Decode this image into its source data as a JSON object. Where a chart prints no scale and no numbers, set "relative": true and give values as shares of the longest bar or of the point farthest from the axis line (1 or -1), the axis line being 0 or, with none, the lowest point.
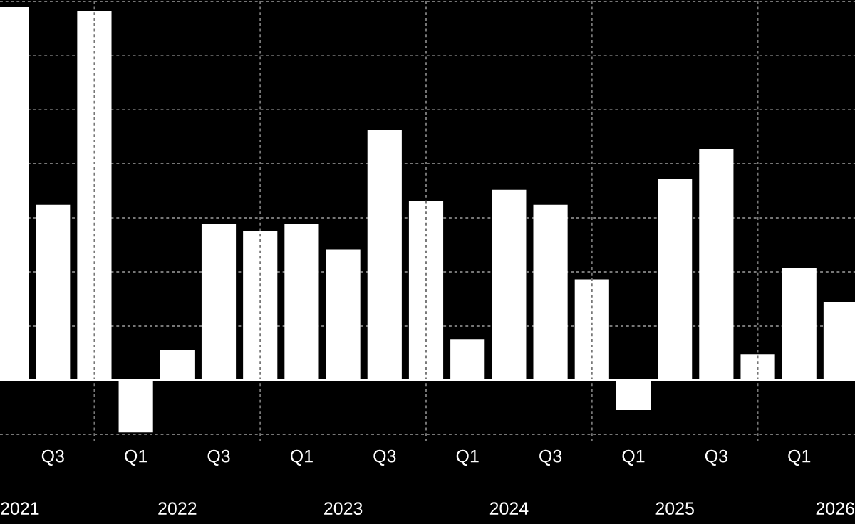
{
  "chart_data": {
    "type": "bar",
    "relative": true,
    "color": "#ffffff",
    "grid": true,
    "categories": [
      null,
      "Q3",
      null,
      "Q1",
      null,
      "Q3",
      null,
      "Q1",
      null,
      "Q3",
      null,
      "Q1",
      null,
      "Q3",
      null,
      "Q1",
      null,
      "Q3",
      null,
      "Q1",
      null
    ],
    "annotations": [
      "2021",
      "2022",
      "2023",
      "2024",
      "2025",
      "2026"
    ],
    "values": [
      1,
      0.47,
      0.99,
      -0.14,
      0.08,
      0.42,
      0.4,
      0.42,
      0.35,
      0.67,
      0.48,
      0.11,
      0.51,
      0.47,
      0.27,
      -0.08,
      0.54,
      0.62,
      0.07,
      0.3,
      0.21
    ]
  }
}
